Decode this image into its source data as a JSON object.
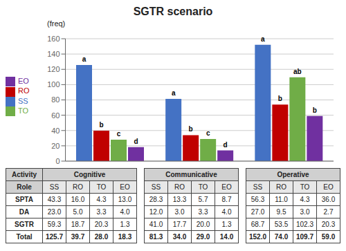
{
  "chart_data": {
    "type": "bar",
    "title": "SGTR scenario",
    "ylabel": "(freq)",
    "categories": [
      "Cognitive",
      "Communicative",
      "Operative"
    ],
    "tick_labels": "y",
    "series": [
      {
        "name": "SS",
        "color": "#4472C4",
        "values": [
          125.7,
          81.3,
          152.0
        ],
        "annotations": [
          "a",
          "a",
          "a"
        ]
      },
      {
        "name": "RO",
        "color": "#C00000",
        "values": [
          39.7,
          34.0,
          74.0
        ],
        "annotations": [
          "b",
          "b",
          "b"
        ]
      },
      {
        "name": "TO",
        "color": "#70AD47",
        "values": [
          28.0,
          29.0,
          109.7
        ],
        "annotations": [
          "c",
          "c",
          "ab"
        ]
      },
      {
        "name": "EO",
        "color": "#7030A0",
        "values": [
          18.3,
          14.0,
          59.0
        ],
        "annotations": [
          "d",
          "d",
          "b"
        ]
      }
    ],
    "ylim": [
      0,
      160
    ],
    "yticks": [
      0,
      20,
      40,
      60,
      80,
      100,
      120,
      140,
      160
    ],
    "grid": true,
    "legend": "left",
    "table": {
      "header": "Activity",
      "subheader": "Role",
      "columns": [
        "SS",
        "RO",
        "TO",
        "EO"
      ],
      "rows": [
        {
          "name": "SPTA",
          "cells": [
            "43.3",
            "16.0",
            "4.3",
            "13.0",
            "28.3",
            "13.3",
            "5.7",
            "8.7",
            "56.3",
            "11.0",
            "4.3",
            "36.0"
          ]
        },
        {
          "name": "DA",
          "cells": [
            "23.0",
            "5.0",
            "3.3",
            "4.0",
            "12.0",
            "3.0",
            "3.3",
            "4.0",
            "27.0",
            "9.5",
            "3.0",
            "2.7"
          ]
        },
        {
          "name": "SGTR",
          "cells": [
            "59.3",
            "18.7",
            "20.3",
            "1.3",
            "41.0",
            "17.7",
            "20.0",
            "1.3",
            "68.7",
            "53.5",
            "102.3",
            "20.3"
          ]
        },
        {
          "name": "Total",
          "cells": [
            "125.7",
            "39.7",
            "28.0",
            "18.3",
            "81.3",
            "34.0",
            "29.0",
            "14.0",
            "152.0",
            "74.0",
            "109.7",
            "59.0"
          ]
        }
      ]
    }
  }
}
